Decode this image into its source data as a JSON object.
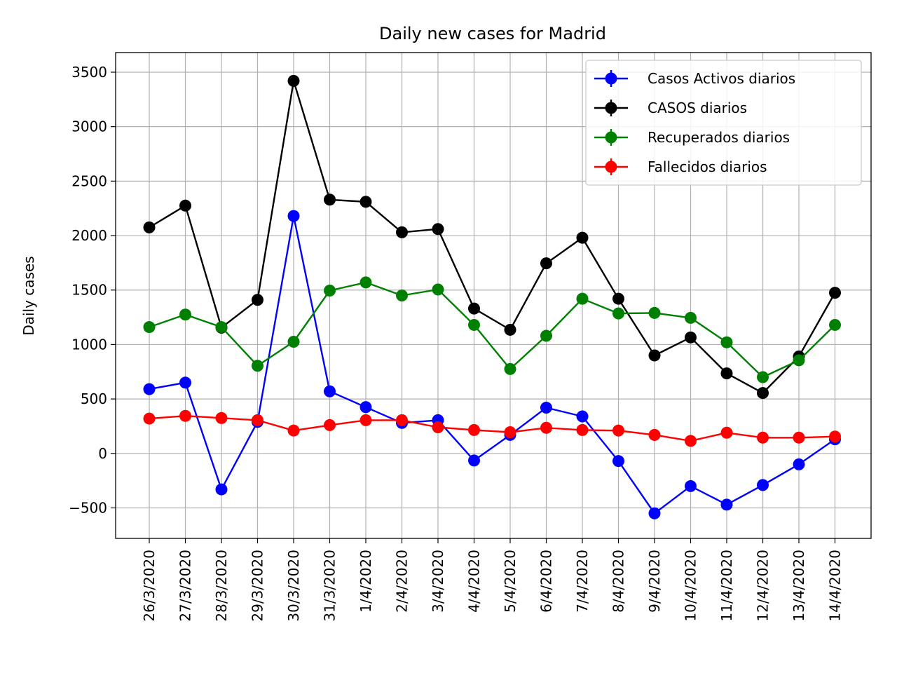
{
  "chart_data": {
    "type": "line",
    "title": "Daily new cases for Madrid",
    "xlabel": "",
    "ylabel": "Daily cases",
    "ylim": [
      -780,
      3680
    ],
    "yticks": [
      -500,
      0,
      500,
      1000,
      1500,
      2000,
      2500,
      3000,
      3500
    ],
    "ytick_labels": [
      "−500",
      "0",
      "500",
      "1000",
      "1500",
      "2000",
      "2500",
      "3000",
      "3500"
    ],
    "grid": true,
    "legend_position": "top-right",
    "categories": [
      "26/3/2020",
      "27/3/2020",
      "28/3/2020",
      "29/3/2020",
      "30/3/2020",
      "31/3/2020",
      "1/4/2020",
      "2/4/2020",
      "3/4/2020",
      "4/4/2020",
      "5/4/2020",
      "6/4/2020",
      "7/4/2020",
      "8/4/2020",
      "9/4/2020",
      "10/4/2020",
      "11/4/2020",
      "12/4/2020",
      "13/4/2020",
      "14/4/2020"
    ],
    "series": [
      {
        "name": "Casos Activos diarios",
        "color": "#0000ff",
        "values": [
          590,
          650,
          -330,
          290,
          2180,
          570,
          425,
          280,
          305,
          -65,
          170,
          420,
          340,
          -70,
          -550,
          -300,
          -470,
          -290,
          -100,
          130
        ]
      },
      {
        "name": "CASOS diarios",
        "color": "#000000",
        "values": [
          2075,
          2275,
          1155,
          1410,
          3420,
          2330,
          2310,
          2030,
          2060,
          1330,
          1135,
          1745,
          1980,
          1420,
          900,
          1065,
          735,
          555,
          890,
          1475
        ]
      },
      {
        "name": "Recuperados diarios",
        "color": "#008000",
        "values": [
          1160,
          1275,
          1160,
          805,
          1025,
          1495,
          1570,
          1450,
          1505,
          1180,
          775,
          1080,
          1420,
          1285,
          1290,
          1245,
          1020,
          700,
          855,
          1180
        ]
      },
      {
        "name": "Fallecidos diarios",
        "color": "#ff0000",
        "values": [
          320,
          345,
          325,
          305,
          210,
          260,
          305,
          305,
          240,
          215,
          195,
          235,
          215,
          210,
          170,
          115,
          190,
          145,
          145,
          155
        ]
      }
    ]
  }
}
